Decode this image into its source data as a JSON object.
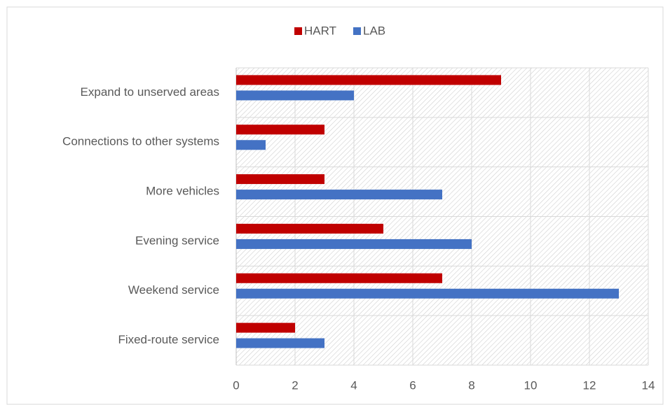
{
  "chart_data": {
    "type": "hbar",
    "categories": [
      "Expand to unserved areas",
      "Connections to other systems",
      "More vehicles",
      "Evening service",
      "Weekend service",
      "Fixed-route service"
    ],
    "series": [
      {
        "name": "HART",
        "color": "#c00000",
        "values": [
          9,
          3,
          3,
          5,
          7,
          2
        ]
      },
      {
        "name": "LAB",
        "color": "#4472c4",
        "values": [
          4,
          1,
          7,
          8,
          13,
          3
        ]
      }
    ],
    "xlim": [
      0,
      14
    ],
    "xticks": [
      0,
      2,
      4,
      6,
      8,
      10,
      12,
      14
    ],
    "grid": true,
    "legend": "top"
  }
}
